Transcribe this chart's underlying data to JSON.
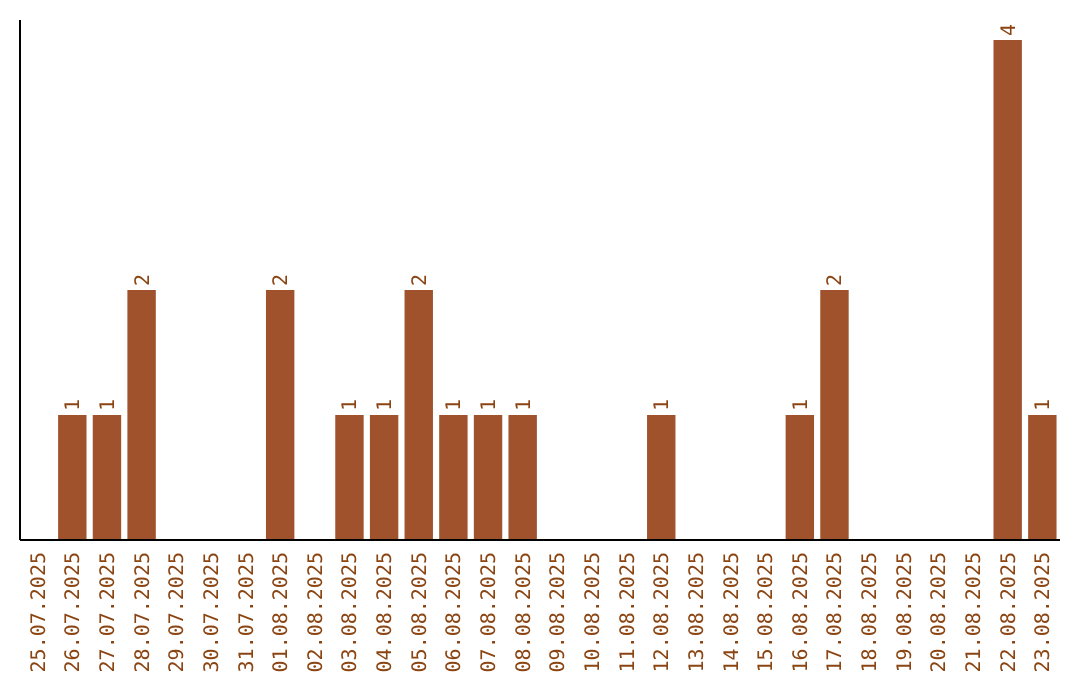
{
  "chart_data": {
    "type": "bar",
    "categories": [
      "25.07.2025",
      "26.07.2025",
      "27.07.2025",
      "28.07.2025",
      "29.07.2025",
      "30.07.2025",
      "31.07.2025",
      "01.08.2025",
      "02.08.2025",
      "03.08.2025",
      "04.08.2025",
      "05.08.2025",
      "06.08.2025",
      "07.08.2025",
      "08.08.2025",
      "09.08.2025",
      "10.08.2025",
      "11.08.2025",
      "12.08.2025",
      "13.08.2025",
      "14.08.2025",
      "15.08.2025",
      "16.08.2025",
      "17.08.2025",
      "18.08.2025",
      "19.08.2025",
      "20.08.2025",
      "21.08.2025",
      "22.08.2025",
      "23.08.2025"
    ],
    "values": [
      0,
      1,
      1,
      2,
      0,
      0,
      0,
      2,
      0,
      1,
      1,
      2,
      1,
      1,
      1,
      0,
      0,
      0,
      1,
      0,
      0,
      0,
      1,
      2,
      0,
      0,
      0,
      0,
      4,
      1
    ],
    "value_labels": [
      null,
      "1",
      "1",
      "2",
      null,
      null,
      null,
      "2",
      null,
      "1",
      "1",
      "2",
      "1",
      "1",
      "1",
      null,
      null,
      null,
      "1",
      null,
      null,
      null,
      "1",
      "2",
      null,
      null,
      null,
      null,
      "4",
      "1"
    ],
    "color": "#a0522d"
  }
}
